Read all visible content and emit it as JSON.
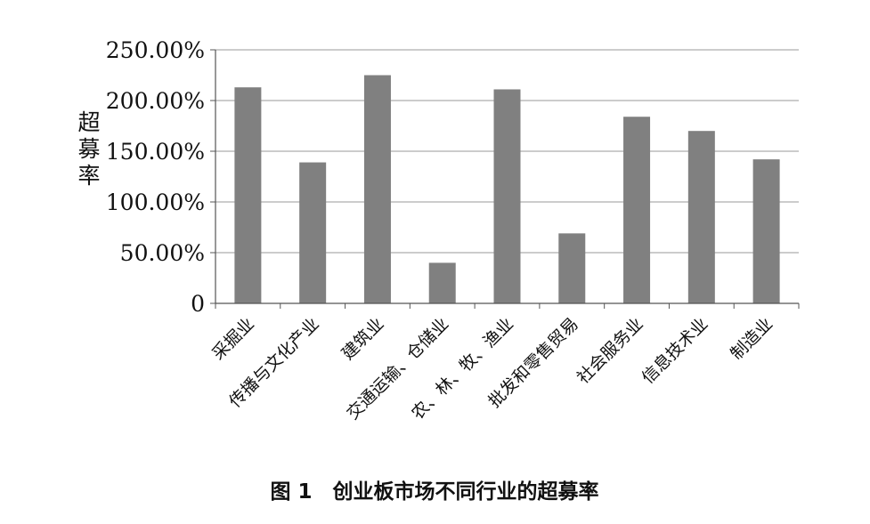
{
  "chart_data": {
    "type": "bar",
    "title": "图 1　创业板市场不同行业的超募率",
    "ylabel": "超募率",
    "xlabel": "",
    "categories": [
      "采掘业",
      "传播与文化产业",
      "建筑业",
      "交通运输、仓储业",
      "农、林、牧、渔业",
      "批发和零售贸易",
      "社会服务业",
      "信息技术业",
      "制造业"
    ],
    "values": [
      213,
      139,
      225,
      40,
      211,
      69,
      184,
      170,
      142
    ],
    "ylim": [
      0,
      250
    ],
    "yticks": [
      0,
      50,
      100,
      150,
      200,
      250
    ],
    "ytick_labels": [
      "0",
      "50.00%",
      "100.00%",
      "150.00%",
      "200.00%",
      "250.00%"
    ],
    "grid": true,
    "legend": "none",
    "bar_color": "#808080",
    "grid_color": "#999999"
  }
}
